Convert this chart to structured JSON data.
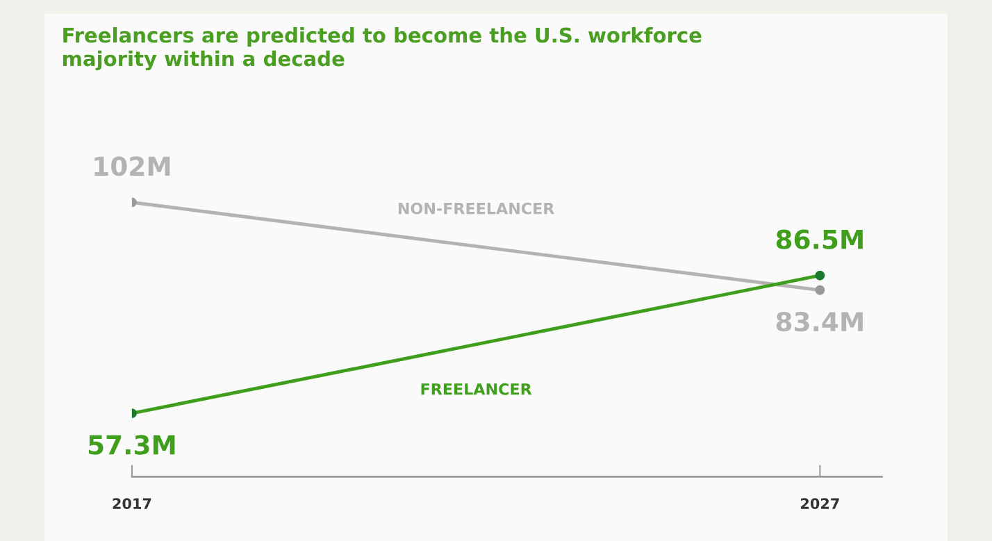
{
  "chart_data": {
    "type": "line",
    "title": "Freelancers are predicted to become the U.S. workforce\nmajority within a decade",
    "x": [
      2017,
      2027
    ],
    "xlim": [
      2017,
      2027.9
    ],
    "xticks": [
      2017,
      2027
    ],
    "tick_labels": "x",
    "marker": "circle",
    "line_style": "solid",
    "series": [
      {
        "name": "NON-FREELANCER",
        "color": "#b3b3b3",
        "values": [
          102,
          83.4
        ],
        "value_labels": [
          "102M",
          "83.4M"
        ]
      },
      {
        "name": "FREELANCER",
        "color": "#3f9f1c",
        "values": [
          57.3,
          86.5
        ],
        "value_labels": [
          "57.3M",
          "86.5M"
        ]
      }
    ]
  }
}
